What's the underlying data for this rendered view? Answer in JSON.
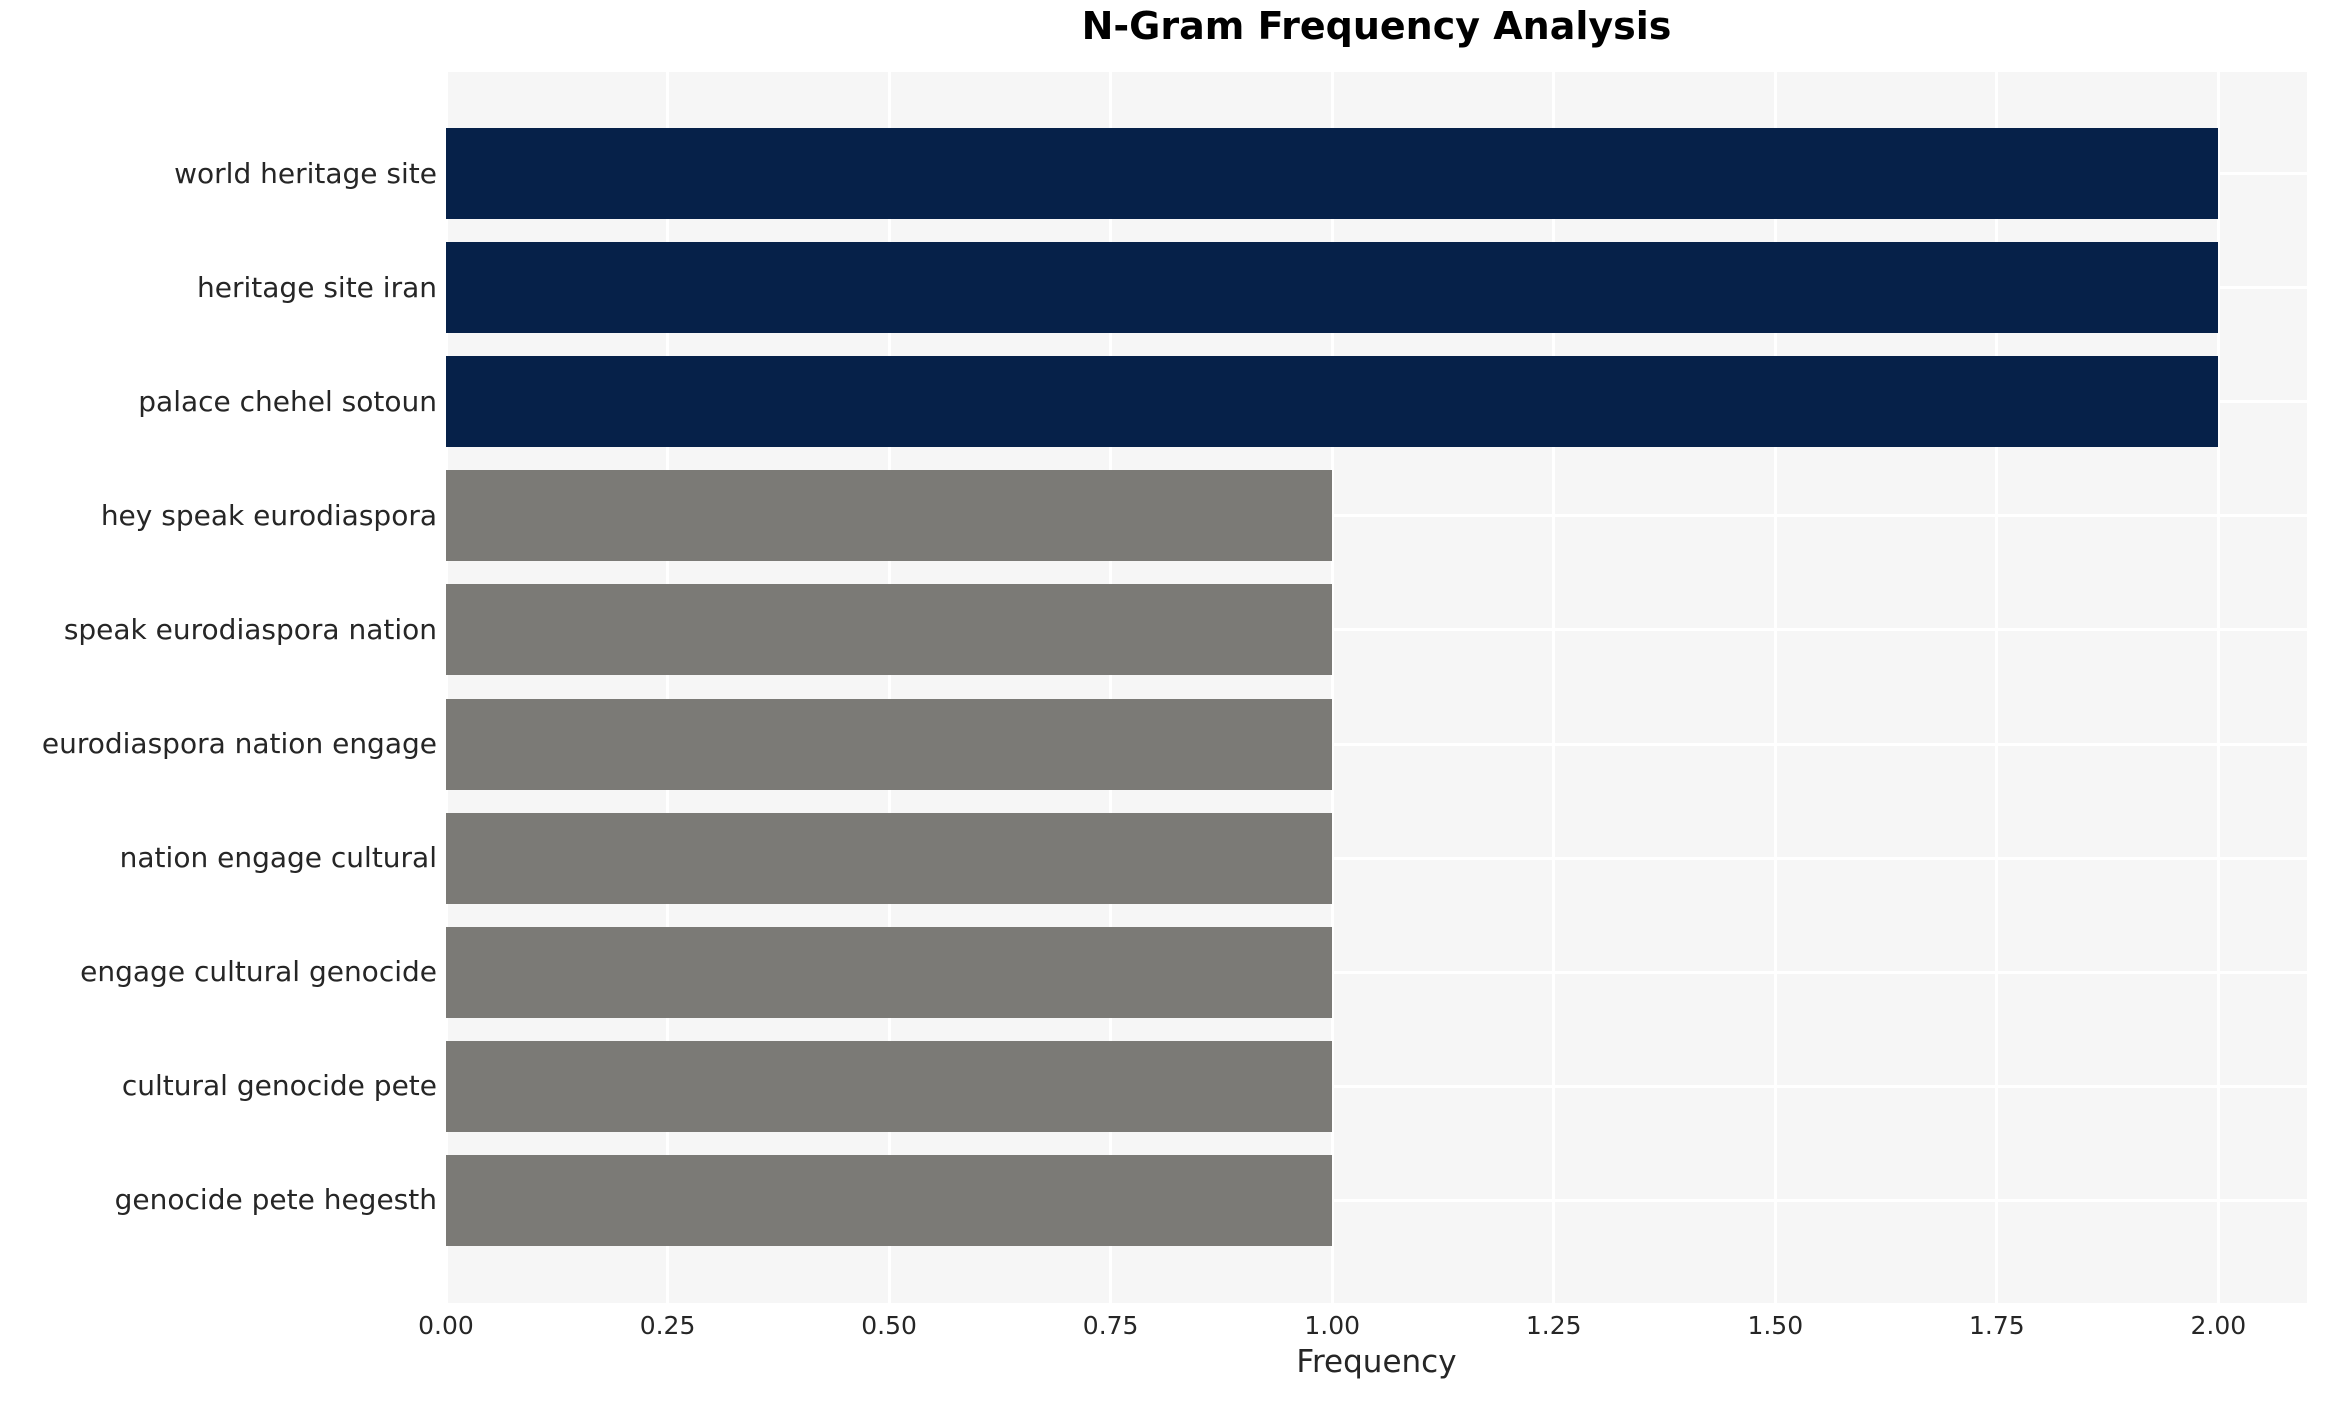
{
  "chart_data": {
    "type": "bar",
    "orientation": "horizontal",
    "title": "N-Gram Frequency Analysis",
    "xlabel": "Frequency",
    "ylabel": "",
    "categories": [
      "world heritage site",
      "heritage site iran",
      "palace chehel sotoun",
      "hey speak eurodiaspora",
      "speak eurodiaspora nation",
      "eurodiaspora nation engage",
      "nation engage cultural",
      "engage cultural genocide",
      "cultural genocide pete",
      "genocide pete hegesth"
    ],
    "values": [
      2,
      2,
      2,
      1,
      1,
      1,
      1,
      1,
      1,
      1
    ],
    "bar_colors": [
      "#062149",
      "#062149",
      "#062149",
      "#7b7a76",
      "#7b7a76",
      "#7b7a76",
      "#7b7a76",
      "#7b7a76",
      "#7b7a76",
      "#7b7a76"
    ],
    "xlim": [
      0,
      2.1
    ],
    "x_ticks": [
      0,
      0.25,
      0.5,
      0.75,
      1.0,
      1.25,
      1.5,
      1.75,
      2.0
    ],
    "x_tick_labels": [
      "0.00",
      "0.25",
      "0.50",
      "0.75",
      "1.00",
      "1.25",
      "1.50",
      "1.75",
      "2.00"
    ],
    "grid": true,
    "legend": false,
    "plot_bg_color": "#f6f6f6",
    "grid_color": "#ffffff",
    "text_color": "#262626"
  }
}
